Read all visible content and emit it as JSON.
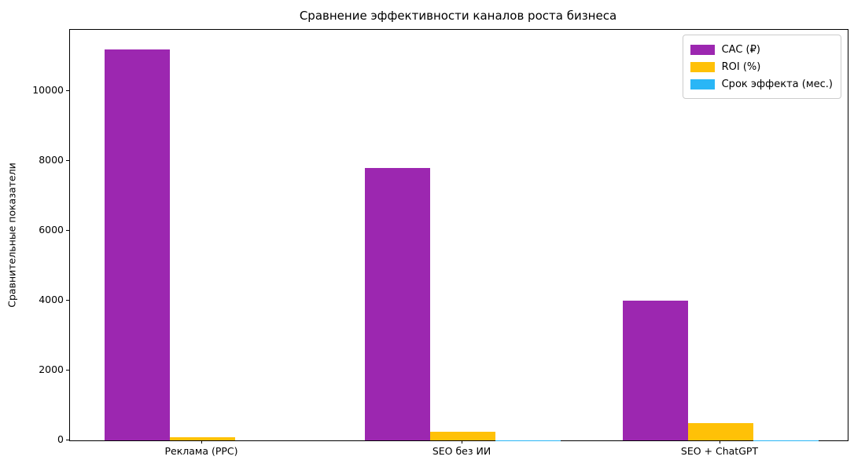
{
  "chart_data": {
    "type": "bar",
    "title": "Сравнение эффективности каналов роста бизнеса",
    "xlabel": "",
    "ylabel": "Сравнительные показатели",
    "categories": [
      "Реклама (PPC)",
      "SEO без ИИ",
      "SEO + ChatGPT"
    ],
    "series": [
      {
        "key": "cac",
        "name": "CAC (₽)",
        "color": "#9c27b0",
        "values": [
          11200,
          7800,
          4000
        ]
      },
      {
        "key": "roi",
        "name": "ROI (%)",
        "color": "#ffc107",
        "values": [
          100,
          250,
          500
        ]
      },
      {
        "key": "effect-period",
        "name": "Срок эффекта (мес.)",
        "color": "#29b6f6",
        "values": [
          1,
          6,
          3
        ]
      }
    ],
    "yticks": [
      0,
      2000,
      4000,
      6000,
      8000,
      10000
    ],
    "ylim": [
      0,
      11760
    ],
    "grid": false,
    "legend_position": "upper right"
  }
}
